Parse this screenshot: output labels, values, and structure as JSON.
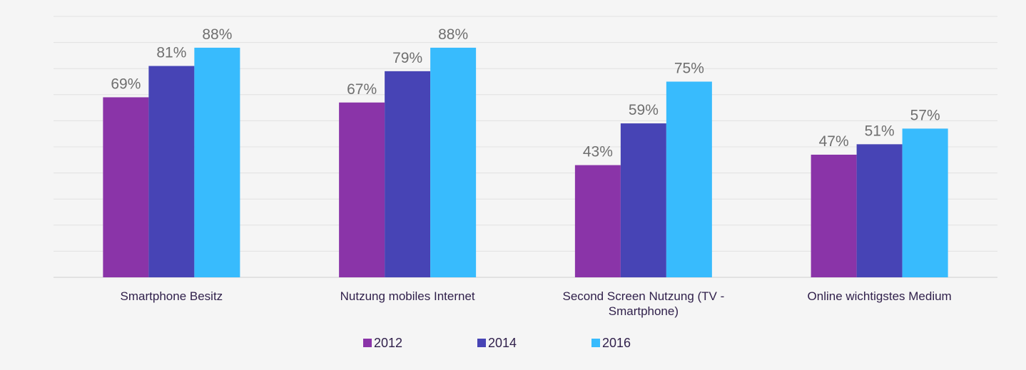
{
  "chart_data": {
    "type": "bar",
    "categories": [
      [
        "Smartphone Besitz"
      ],
      [
        "Nutzung mobiles Internet"
      ],
      [
        "Second Screen Nutzung (TV -",
        "Smartphone)"
      ],
      [
        "Online wichtigstes Medium"
      ]
    ],
    "series": [
      {
        "name": "2012",
        "color": "#8a34a8",
        "values": [
          69,
          67,
          43,
          47
        ],
        "labels": [
          "69%",
          "67%",
          "43%",
          "47%"
        ]
      },
      {
        "name": "2014",
        "color": "#4744b5",
        "values": [
          81,
          79,
          59,
          51
        ],
        "labels": [
          "81%",
          "79%",
          "59%",
          "51%"
        ]
      },
      {
        "name": "2016",
        "color": "#38bbfd",
        "values": [
          88,
          88,
          75,
          57
        ],
        "labels": [
          "88%",
          "88%",
          "75%",
          "57%"
        ]
      }
    ],
    "ylim": [
      0,
      100
    ],
    "grid": true,
    "legend": "bottom-center"
  }
}
